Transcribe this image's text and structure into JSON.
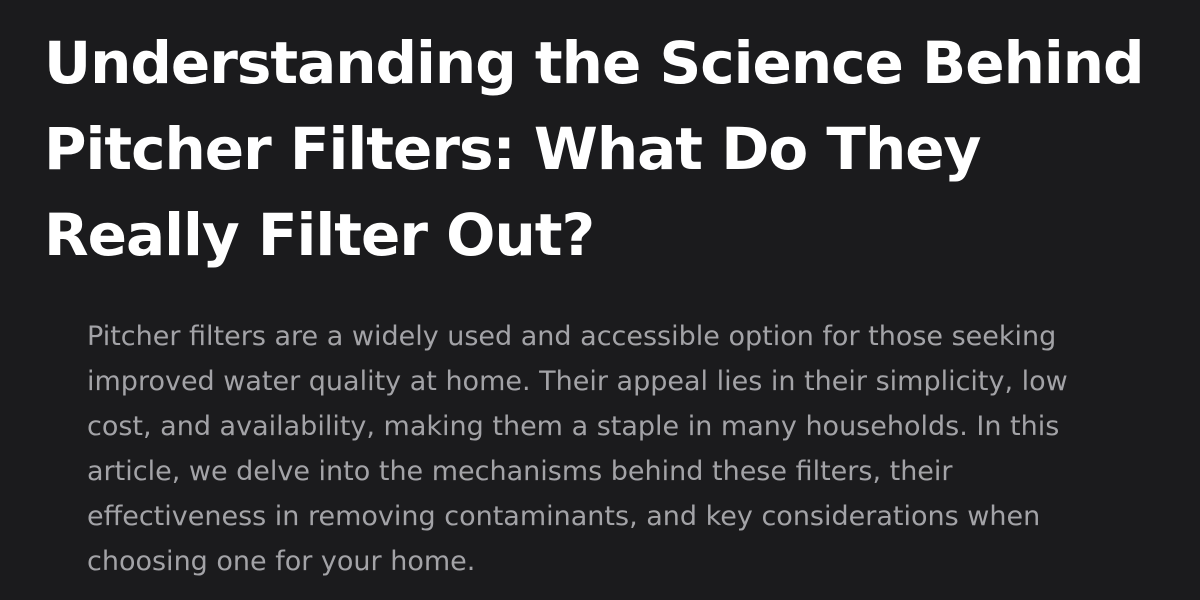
{
  "article": {
    "title": "Understanding the Science Behind Pitcher Filters: What Do They Really Filter Out?",
    "summary": "Pitcher filters are a widely used and accessible option for those seeking improved water quality at home. Their appeal lies in their simplicity, low cost, and availability, making them a staple in many households. In this article, we delve into the mechanisms behind these filters, their effectiveness in removing contaminants, and key considerations when choosing one for your home."
  },
  "colors": {
    "background": "#1b1b1d",
    "title": "#ffffff",
    "summary": "#a3a3a7"
  }
}
